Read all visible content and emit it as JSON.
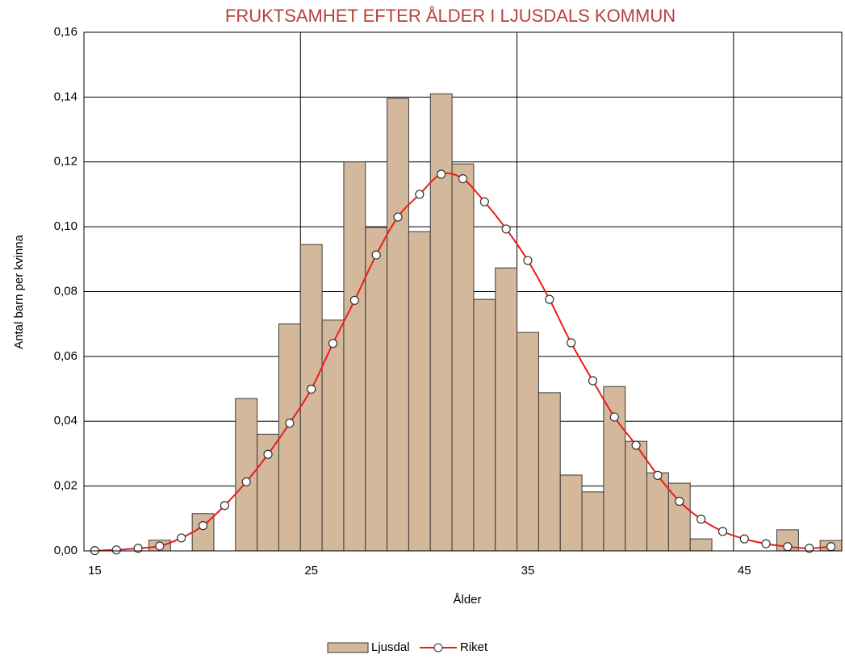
{
  "chart_data": {
    "type": "bar-line",
    "title": "FRUKTSAMHET EFTER ÅLDER I LJUSDALS KOMMUN",
    "x_label": "Ålder",
    "y_label": "Antal barn per kvinna",
    "x": [
      15,
      16,
      17,
      18,
      19,
      20,
      21,
      22,
      23,
      24,
      25,
      26,
      27,
      28,
      29,
      30,
      31,
      32,
      33,
      34,
      35,
      36,
      37,
      38,
      39,
      40,
      41,
      42,
      43,
      44,
      45,
      46,
      47,
      48,
      49
    ],
    "series": [
      {
        "name": "Ljusdal",
        "type": "bar",
        "color": "#d3b89c",
        "values": [
          0,
          0,
          0,
          0.0033,
          0,
          0.0115,
          0,
          0.047,
          0.036,
          0.07,
          0.0945,
          0.0712,
          0.12,
          0.0998,
          0.1396,
          0.0985,
          0.141,
          0.1194,
          0.0776,
          0.0873,
          0.0674,
          0.0488,
          0.0234,
          0.0182,
          0.0507,
          0.0338,
          0.0241,
          0.0209,
          0.0037,
          0,
          0,
          0,
          0.0065,
          0,
          0.0032
        ]
      },
      {
        "name": "Riket",
        "type": "line",
        "color": "#ee1c1c",
        "values": [
          0.0001,
          0.0003,
          0.0008,
          0.0015,
          0.004,
          0.0078,
          0.014,
          0.0213,
          0.0298,
          0.0394,
          0.0499,
          0.064,
          0.0773,
          0.0913,
          0.103,
          0.11,
          0.1162,
          0.1148,
          0.1077,
          0.0993,
          0.0896,
          0.0776,
          0.0642,
          0.0525,
          0.0413,
          0.0326,
          0.0233,
          0.0153,
          0.0098,
          0.006,
          0.0037,
          0.0022,
          0.0013,
          0.0008,
          0.0013
        ]
      }
    ],
    "xlim": [
      15,
      50
    ],
    "xticks": [
      15,
      25,
      35,
      45
    ],
    "ylim": [
      0,
      0.16
    ],
    "yticks": [
      {
        "value": 0,
        "label": "0,00"
      },
      {
        "value": 0.02,
        "label": "0,02"
      },
      {
        "value": 0.04,
        "label": "0,04"
      },
      {
        "value": 0.06,
        "label": "0,06"
      },
      {
        "value": 0.08,
        "label": "0,08"
      },
      {
        "value": 0.1,
        "label": "0,10"
      },
      {
        "value": 0.12,
        "label": "0,12"
      },
      {
        "value": 0.14,
        "label": "0,14"
      },
      {
        "value": 0.16,
        "label": "0,16"
      }
    ],
    "grid": true,
    "legend": "bottom"
  }
}
